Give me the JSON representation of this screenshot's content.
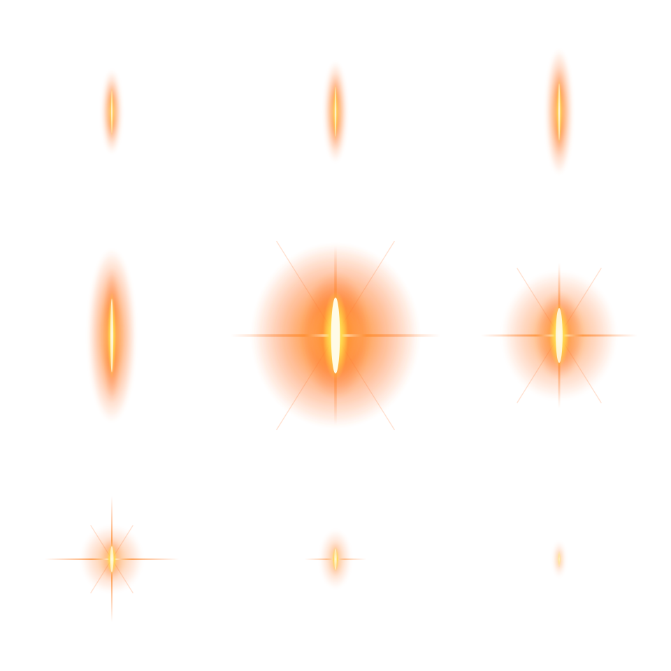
{
  "sprite_sheet": {
    "columns": 3,
    "rows": 3,
    "palette": {
      "outer_glow": "#ff7a33",
      "mid_glow": "#ff8a2a",
      "core": "#ffd84d",
      "hot_center": "#fffbe6",
      "background": "#ffffff"
    },
    "frames": [
      {
        "index": 1,
        "icon": "flame-streak-icon",
        "glow_level": 0.25,
        "stage": "streak"
      },
      {
        "index": 2,
        "icon": "flame-streak-icon",
        "glow_level": 0.32,
        "stage": "streak"
      },
      {
        "index": 3,
        "icon": "flame-streak-icon",
        "glow_level": 0.38,
        "stage": "streak"
      },
      {
        "index": 4,
        "icon": "flame-streak-icon",
        "glow_level": 0.6,
        "stage": "streak"
      },
      {
        "index": 5,
        "icon": "starburst-icon",
        "glow_level": 1.0,
        "stage": "burst"
      },
      {
        "index": 6,
        "icon": "starburst-icon",
        "glow_level": 0.8,
        "stage": "burst"
      },
      {
        "index": 7,
        "icon": "sparkle-icon",
        "glow_level": 0.55,
        "stage": "fade"
      },
      {
        "index": 8,
        "icon": "faint-glow-icon",
        "glow_level": 0.3,
        "stage": "fade"
      },
      {
        "index": 9,
        "icon": "faint-glow-icon",
        "glow_level": 0.15,
        "stage": "fade"
      }
    ]
  }
}
